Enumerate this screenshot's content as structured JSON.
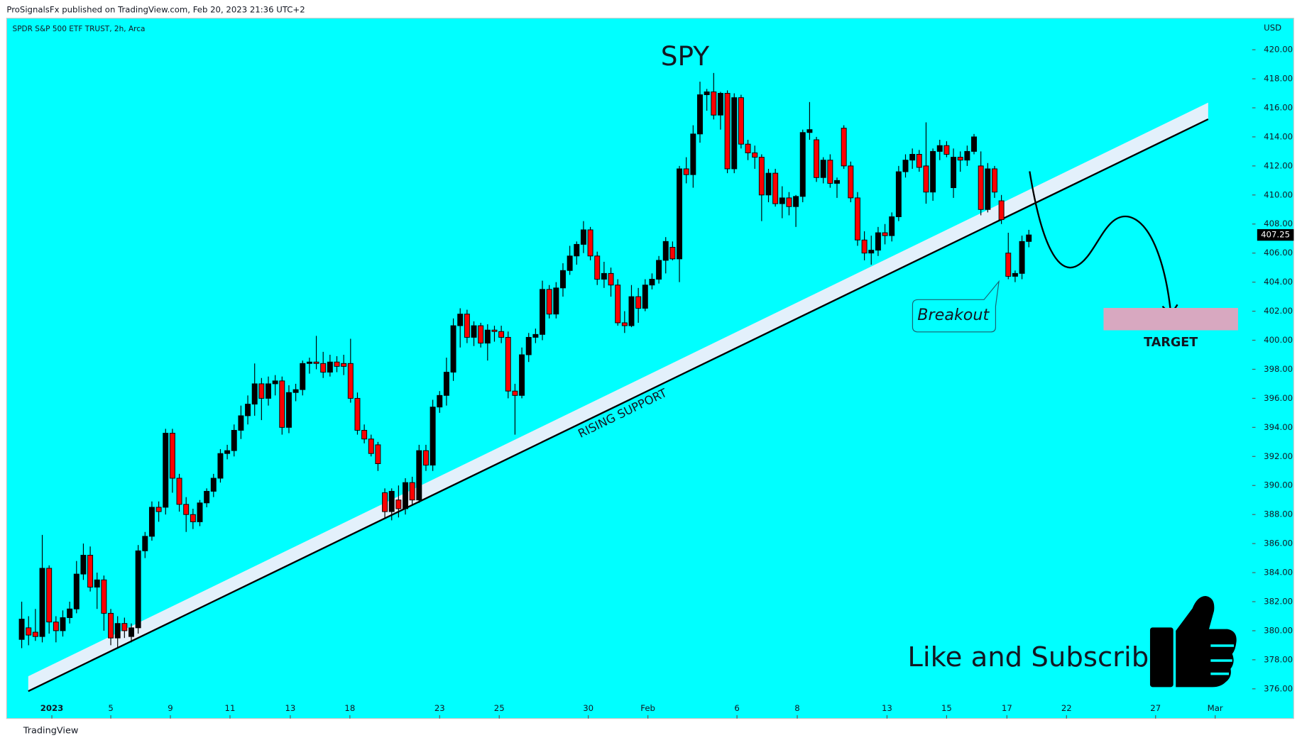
{
  "header": "ProSignalsFx published on TradingView.com, Feb 20, 2023 21:36 UTC+2",
  "footer": "TradingView",
  "chart_data": {
    "type": "candlestick",
    "title": "SPY",
    "symbol": "SPDR S&P 500 ETF TRUST, 2h, Arca",
    "currency": "USD",
    "annotations": {
      "rising_support": "RISING SUPPORT",
      "breakout": "Breakout",
      "target": "TARGET",
      "cta": "Like and Subscribe"
    },
    "up_color": "#000000",
    "down_color": "#ff0000",
    "grid": false,
    "xlim": [
      -2.2,
      179.6
    ],
    "ylim": [
      374.07,
      422.17
    ],
    "xticks": [
      {
        "value": 4.4,
        "label": "2023"
      },
      {
        "value": 13,
        "label": "5"
      },
      {
        "value": 21.7,
        "label": "9"
      },
      {
        "value": 30.4,
        "label": "11"
      },
      {
        "value": 39.2,
        "label": "13"
      },
      {
        "value": 47.9,
        "label": "18"
      },
      {
        "value": 61,
        "label": "23"
      },
      {
        "value": 69.7,
        "label": "25"
      },
      {
        "value": 82.7,
        "label": "30"
      },
      {
        "value": 91.4,
        "label": "Feb"
      },
      {
        "value": 104.4,
        "label": "6"
      },
      {
        "value": 113.2,
        "label": "8"
      },
      {
        "value": 126.3,
        "label": "13"
      },
      {
        "value": 135,
        "label": "15"
      },
      {
        "value": 143.8,
        "label": "17"
      },
      {
        "value": 152.5,
        "label": "22"
      },
      {
        "value": 165.5,
        "label": "27"
      },
      {
        "value": 174.2,
        "label": "Mar"
      }
    ],
    "yticks": [
      {
        "value": 376,
        "label": "376.00"
      },
      {
        "value": 378,
        "label": "378.00"
      },
      {
        "value": 380,
        "label": "380.00"
      },
      {
        "value": 382,
        "label": "382.00"
      },
      {
        "value": 384,
        "label": "384.00"
      },
      {
        "value": 386,
        "label": "386.00"
      },
      {
        "value": 388,
        "label": "388.00"
      },
      {
        "value": 390,
        "label": "390.00"
      },
      {
        "value": 392,
        "label": "392.00"
      },
      {
        "value": 394,
        "label": "394.00"
      },
      {
        "value": 396,
        "label": "396.00"
      },
      {
        "value": 398,
        "label": "398.00"
      },
      {
        "value": 400,
        "label": "400.00"
      },
      {
        "value": 402,
        "label": "402.00"
      },
      {
        "value": 404,
        "label": "404.00"
      },
      {
        "value": 406,
        "label": "406.00"
      },
      {
        "value": 408,
        "label": "408.00"
      },
      {
        "value": 410,
        "label": "410.00"
      },
      {
        "value": 412,
        "label": "412.00"
      },
      {
        "value": 414,
        "label": "414.00"
      },
      {
        "value": 416,
        "label": "416.00"
      },
      {
        "value": 418,
        "label": "418.00"
      },
      {
        "value": 420,
        "label": "420.00"
      }
    ],
    "candles": [
      [
        379.4,
        382.0,
        378.8,
        380.8
      ],
      [
        380.2,
        381.0,
        379.0,
        379.7
      ],
      [
        379.9,
        381.5,
        379.3,
        379.6
      ],
      [
        379.6,
        386.6,
        379.2,
        384.3
      ],
      [
        384.3,
        384.5,
        379.8,
        380.6
      ],
      [
        380.6,
        381.0,
        379.2,
        380.0
      ],
      [
        380.0,
        381.4,
        379.6,
        380.9
      ],
      [
        380.9,
        382.0,
        380.5,
        381.5
      ],
      [
        381.5,
        384.8,
        381.2,
        383.9
      ],
      [
        383.9,
        386.0,
        383.5,
        385.2
      ],
      [
        385.2,
        385.8,
        382.7,
        383.0
      ],
      [
        383.0,
        384.0,
        381.5,
        383.5
      ],
      [
        383.5,
        383.8,
        380.0,
        381.2
      ],
      [
        381.2,
        381.5,
        379.0,
        379.5
      ],
      [
        379.5,
        381.0,
        378.8,
        380.5
      ],
      [
        380.5,
        380.9,
        379.5,
        380.0
      ],
      [
        379.6,
        380.5,
        379.2,
        380.2
      ],
      [
        380.2,
        385.9,
        379.8,
        385.5
      ],
      [
        385.5,
        386.8,
        385.0,
        386.5
      ],
      [
        386.5,
        388.9,
        386.2,
        388.5
      ],
      [
        388.5,
        388.9,
        387.5,
        388.2
      ],
      [
        388.5,
        393.9,
        388.0,
        393.6
      ],
      [
        393.6,
        393.9,
        389.5,
        390.5
      ],
      [
        390.5,
        390.8,
        388.2,
        388.7
      ],
      [
        388.7,
        389.2,
        386.8,
        388.0
      ],
      [
        388.0,
        388.4,
        387.0,
        387.5
      ],
      [
        387.5,
        389.0,
        387.2,
        388.8
      ],
      [
        388.8,
        389.8,
        388.5,
        389.6
      ],
      [
        389.6,
        390.8,
        389.2,
        390.5
      ],
      [
        390.5,
        392.5,
        390.2,
        392.2
      ],
      [
        392.2,
        392.8,
        391.8,
        392.4
      ],
      [
        392.4,
        394.2,
        392.0,
        393.8
      ],
      [
        393.8,
        395.5,
        393.2,
        394.8
      ],
      [
        394.8,
        396.2,
        394.2,
        395.6
      ],
      [
        395.6,
        398.4,
        394.8,
        397.0
      ],
      [
        397.0,
        397.4,
        394.5,
        396.0
      ],
      [
        396.0,
        397.5,
        395.5,
        397.0
      ],
      [
        397.0,
        397.6,
        396.2,
        397.2
      ],
      [
        397.2,
        397.5,
        393.5,
        394.0
      ],
      [
        394.0,
        396.9,
        393.6,
        396.4
      ],
      [
        396.4,
        397.0,
        395.8,
        396.6
      ],
      [
        396.6,
        398.6,
        396.2,
        398.4
      ],
      [
        398.4,
        398.8,
        397.7,
        398.5
      ],
      [
        398.5,
        400.3,
        398.0,
        398.4
      ],
      [
        398.4,
        399.2,
        397.4,
        397.8
      ],
      [
        397.8,
        399.0,
        397.5,
        398.5
      ],
      [
        398.5,
        398.9,
        397.8,
        398.2
      ],
      [
        398.4,
        399.0,
        397.6,
        398.2
      ],
      [
        398.4,
        400.1,
        395.7,
        396.0
      ],
      [
        396.0,
        396.4,
        393.5,
        393.8
      ],
      [
        393.8,
        394.2,
        392.9,
        393.2
      ],
      [
        393.2,
        393.5,
        392.0,
        392.2
      ],
      [
        392.8,
        393.0,
        391.0,
        391.5
      ],
      [
        389.5,
        389.8,
        387.7,
        388.2
      ],
      [
        388.2,
        389.8,
        387.6,
        389.6
      ],
      [
        389.0,
        390.0,
        387.8,
        388.4
      ],
      [
        388.4,
        390.5,
        388.0,
        390.2
      ],
      [
        390.2,
        390.6,
        388.6,
        389.0
      ],
      [
        389.0,
        392.8,
        388.8,
        392.4
      ],
      [
        392.4,
        392.8,
        391.0,
        391.4
      ],
      [
        391.4,
        395.9,
        391.0,
        395.4
      ],
      [
        395.4,
        396.5,
        395.0,
        396.2
      ],
      [
        396.2,
        398.8,
        395.5,
        397.8
      ],
      [
        397.8,
        401.5,
        397.2,
        401.0
      ],
      [
        401.0,
        402.2,
        399.5,
        401.8
      ],
      [
        401.8,
        402.1,
        399.8,
        400.2
      ],
      [
        400.2,
        401.3,
        399.6,
        401.0
      ],
      [
        401.0,
        401.2,
        399.5,
        399.8
      ],
      [
        399.8,
        401.1,
        398.6,
        400.7
      ],
      [
        400.7,
        401.0,
        399.9,
        400.6
      ],
      [
        400.6,
        401.0,
        399.8,
        400.2
      ],
      [
        400.2,
        400.6,
        396.0,
        396.5
      ],
      [
        396.5,
        397.0,
        393.5,
        396.2
      ],
      [
        396.2,
        399.5,
        396.0,
        399.0
      ],
      [
        399.0,
        400.5,
        398.5,
        400.2
      ],
      [
        400.2,
        400.8,
        399.8,
        400.4
      ],
      [
        400.4,
        404.1,
        400.0,
        403.5
      ],
      [
        403.5,
        403.8,
        401.5,
        401.8
      ],
      [
        401.8,
        404.0,
        401.5,
        403.6
      ],
      [
        403.6,
        405.3,
        403.0,
        404.8
      ],
      [
        404.8,
        406.5,
        404.5,
        405.8
      ],
      [
        405.8,
        406.8,
        405.2,
        406.6
      ],
      [
        406.6,
        408.2,
        406.0,
        407.6
      ],
      [
        407.6,
        407.8,
        405.5,
        405.8
      ],
      [
        405.8,
        406.1,
        403.8,
        404.2
      ],
      [
        404.2,
        405.4,
        403.6,
        404.6
      ],
      [
        404.6,
        405.0,
        403.0,
        403.8
      ],
      [
        403.8,
        404.2,
        401.0,
        401.2
      ],
      [
        401.2,
        402.0,
        400.5,
        401.0
      ],
      [
        401.0,
        403.8,
        400.9,
        403.0
      ],
      [
        403.0,
        403.6,
        401.2,
        402.2
      ],
      [
        402.2,
        404.2,
        402.0,
        403.8
      ],
      [
        403.8,
        404.6,
        403.5,
        404.2
      ],
      [
        404.2,
        405.8,
        403.9,
        405.5
      ],
      [
        405.5,
        407.1,
        404.6,
        406.8
      ],
      [
        406.4,
        406.8,
        405.5,
        405.6
      ],
      [
        405.6,
        412.0,
        404.0,
        411.8
      ],
      [
        411.8,
        412.6,
        410.8,
        411.4
      ],
      [
        411.4,
        414.8,
        410.5,
        414.2
      ],
      [
        414.2,
        417.8,
        413.6,
        416.9
      ],
      [
        416.9,
        417.3,
        415.8,
        417.1
      ],
      [
        417.1,
        418.4,
        415.2,
        415.5
      ],
      [
        415.5,
        417.1,
        414.5,
        417.0
      ],
      [
        417.0,
        417.2,
        411.5,
        411.8
      ],
      [
        411.8,
        417.0,
        411.5,
        416.7
      ],
      [
        416.7,
        416.9,
        413.2,
        413.5
      ],
      [
        413.5,
        413.8,
        412.4,
        412.9
      ],
      [
        412.9,
        413.4,
        411.8,
        412.6
      ],
      [
        412.6,
        412.8,
        408.2,
        410.0
      ],
      [
        410.0,
        411.8,
        409.5,
        411.5
      ],
      [
        411.5,
        411.8,
        409.2,
        409.4
      ],
      [
        409.4,
        410.6,
        408.4,
        409.8
      ],
      [
        409.8,
        410.2,
        408.6,
        409.2
      ],
      [
        409.2,
        410.0,
        407.8,
        409.9
      ],
      [
        409.9,
        414.5,
        409.5,
        414.3
      ],
      [
        414.3,
        416.4,
        413.8,
        414.5
      ],
      [
        413.8,
        414.0,
        410.9,
        411.2
      ],
      [
        411.2,
        412.6,
        410.8,
        412.4
      ],
      [
        412.4,
        412.8,
        410.5,
        410.8
      ],
      [
        410.8,
        411.2,
        409.8,
        411.0
      ],
      [
        414.6,
        414.8,
        411.8,
        412.0
      ],
      [
        412.0,
        412.3,
        409.5,
        409.8
      ],
      [
        409.8,
        410.2,
        406.5,
        406.9
      ],
      [
        406.9,
        407.5,
        405.5,
        406.0
      ],
      [
        406.0,
        407.2,
        405.2,
        406.2
      ],
      [
        406.2,
        407.8,
        405.8,
        407.4
      ],
      [
        407.4,
        408.0,
        406.6,
        407.2
      ],
      [
        407.2,
        408.8,
        406.8,
        408.5
      ],
      [
        408.5,
        412.0,
        408.2,
        411.6
      ],
      [
        411.6,
        412.8,
        411.2,
        412.4
      ],
      [
        412.4,
        413.2,
        411.8,
        412.8
      ],
      [
        412.8,
        413.1,
        411.6,
        411.9
      ],
      [
        412.0,
        415.0,
        409.4,
        410.2
      ],
      [
        410.2,
        413.2,
        409.6,
        413.0
      ],
      [
        413.0,
        413.8,
        412.4,
        413.4
      ],
      [
        413.4,
        413.7,
        412.6,
        412.8
      ],
      [
        410.5,
        413.2,
        409.8,
        412.6
      ],
      [
        412.6,
        413.0,
        411.6,
        412.4
      ],
      [
        412.4,
        413.4,
        412.0,
        413.0
      ],
      [
        413.0,
        414.2,
        412.8,
        414.0
      ],
      [
        412.0,
        413.0,
        408.6,
        409.0
      ],
      [
        409.0,
        412.2,
        408.8,
        411.8
      ],
      [
        411.8,
        412.0,
        409.8,
        410.2
      ],
      [
        409.6,
        410.0,
        408.0,
        408.3
      ],
      [
        406.0,
        407.4,
        404.2,
        404.4
      ],
      [
        404.4,
        404.8,
        404.0,
        404.6
      ],
      [
        404.6,
        407.2,
        404.2,
        406.8
      ],
      [
        406.8,
        407.6,
        406.4,
        407.25
      ]
    ]
  }
}
